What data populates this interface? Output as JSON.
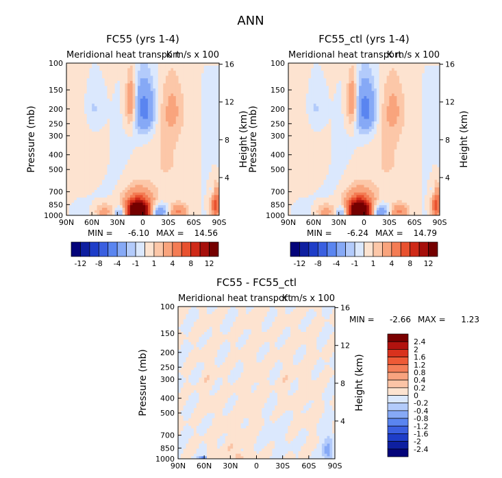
{
  "page_title": "ANN",
  "colors": {
    "land_bg": "#dfefff",
    "pos_light": "#fde3d0",
    "neg_light": "#cfe2ff"
  },
  "contour_scales": {
    "top_levels": [
      "-12",
      "-8",
      "-4",
      "-1",
      "1",
      "4",
      "8",
      "12"
    ],
    "top_colors": [
      "#04047a",
      "#0e1fa0",
      "#1e3dc8",
      "#3a5fe0",
      "#5a85f0",
      "#86a9f6",
      "#b3cbfb",
      "#dbe8fd",
      "#fde3d0",
      "#fcc7a8",
      "#f9a47d",
      "#f47c54",
      "#e8512f",
      "#cf2a18",
      "#a60f0b",
      "#740000"
    ],
    "diff_levels": [
      "2.4",
      "2",
      "1.6",
      "1.2",
      "0.8",
      "0.4",
      "0.2",
      "0",
      "-0.2",
      "-0.4",
      "-0.8",
      "-1.2",
      "-1.6",
      "-2",
      "-2.4"
    ],
    "diff_colors": [
      "#7a0000",
      "#b2130f",
      "#d9321d",
      "#ee5a36",
      "#f47e58",
      "#f8a37f",
      "#fbc4a6",
      "#fde3d0",
      "#dbe8fd",
      "#b3cbfb",
      "#86a9f6",
      "#5a85f0",
      "#3a5fe0",
      "#1e3dc8",
      "#0e1fa0",
      "#04047a"
    ]
  },
  "chart_data": [
    {
      "type": "heatmap",
      "title": "FC55 (yrs 1-4)",
      "subtitle_left": "Meridional heat transport",
      "subtitle_right": "K m/s x 100",
      "xlabel": "",
      "ylabel": "Pressure (mb)",
      "y2label": "Height (km)",
      "x_ticks": [
        "90N",
        "60N",
        "30N",
        "0",
        "30S",
        "60S",
        "90S"
      ],
      "y_ticks": [
        100,
        150,
        200,
        250,
        300,
        400,
        500,
        700,
        850,
        1000
      ],
      "y2_ticks": [
        16,
        12,
        8,
        4
      ],
      "y_scale": "log",
      "min_label": "MIN =",
      "min": "-6.10",
      "max_label": "MAX =",
      "max": "14.56",
      "blobs": [
        {
          "x": -5,
          "p": 950,
          "v": 13,
          "rx": 14,
          "rp": 130
        },
        {
          "x": -5,
          "p": 900,
          "v": 8,
          "rx": 18,
          "rp": 220
        },
        {
          "x": 16,
          "p": 950,
          "v": -6,
          "rx": 12,
          "rp": 120
        },
        {
          "x": 42,
          "p": 950,
          "v": 4,
          "rx": 10,
          "rp": 110
        },
        {
          "x": -25,
          "p": 960,
          "v": -5,
          "rx": 9,
          "rp": 100
        },
        {
          "x": -45,
          "p": 950,
          "v": 3,
          "rx": 12,
          "rp": 120
        },
        {
          "x": 2,
          "p": 200,
          "v": -5,
          "rx": 12,
          "rp": 80
        },
        {
          "x": -14,
          "p": 180,
          "v": 4,
          "rx": 6,
          "rp": 70
        },
        {
          "x": 35,
          "p": 200,
          "v": 2,
          "rx": 14,
          "rp": 100
        },
        {
          "x": -58,
          "p": 200,
          "v": -1.5,
          "rx": 10,
          "rp": 80
        },
        {
          "x": -66,
          "p": 400,
          "v": 1,
          "rx": 22,
          "rp": 300
        },
        {
          "x": 28,
          "p": 400,
          "v": 1,
          "rx": 16,
          "rp": 200
        },
        {
          "x": 86,
          "p": 850,
          "v": 7,
          "rx": 6,
          "rp": 200
        },
        {
          "x": 82,
          "p": 700,
          "v": -2,
          "rx": 3,
          "rp": 80
        }
      ]
    },
    {
      "type": "heatmap",
      "title": "FC55_ctl (yrs 1-4)",
      "subtitle_left": "Meridional heat transport",
      "subtitle_right": "K m/s x 100",
      "xlabel": "",
      "ylabel": "Pressure (mb)",
      "y2label": "Height (km)",
      "x_ticks": [
        "90N",
        "60N",
        "30N",
        "0",
        "30S",
        "60S",
        "90S"
      ],
      "y_ticks": [
        100,
        150,
        200,
        250,
        300,
        400,
        500,
        700,
        850,
        1000
      ],
      "y2_ticks": [
        16,
        12,
        8,
        4
      ],
      "y_scale": "log",
      "min_label": "MIN =",
      "min": "-6.24",
      "max_label": "MAX =",
      "max": "14.79",
      "blobs": [
        {
          "x": -5,
          "p": 950,
          "v": 13,
          "rx": 14,
          "rp": 130
        },
        {
          "x": -5,
          "p": 900,
          "v": 8,
          "rx": 18,
          "rp": 220
        },
        {
          "x": 16,
          "p": 950,
          "v": -6,
          "rx": 12,
          "rp": 120
        },
        {
          "x": 42,
          "p": 950,
          "v": 4,
          "rx": 10,
          "rp": 110
        },
        {
          "x": -25,
          "p": 960,
          "v": -5,
          "rx": 9,
          "rp": 100
        },
        {
          "x": -45,
          "p": 950,
          "v": 3,
          "rx": 12,
          "rp": 120
        },
        {
          "x": 2,
          "p": 200,
          "v": -5,
          "rx": 12,
          "rp": 80
        },
        {
          "x": -14,
          "p": 180,
          "v": 4,
          "rx": 6,
          "rp": 70
        },
        {
          "x": 35,
          "p": 200,
          "v": 2,
          "rx": 14,
          "rp": 100
        },
        {
          "x": -58,
          "p": 200,
          "v": -1.5,
          "rx": 10,
          "rp": 80
        },
        {
          "x": -66,
          "p": 400,
          "v": 1,
          "rx": 22,
          "rp": 300
        },
        {
          "x": 28,
          "p": 400,
          "v": 1,
          "rx": 16,
          "rp": 200
        },
        {
          "x": 86,
          "p": 850,
          "v": 7,
          "rx": 6,
          "rp": 200
        },
        {
          "x": 82,
          "p": 700,
          "v": -2,
          "rx": 3,
          "rp": 80
        }
      ]
    },
    {
      "type": "heatmap",
      "title": "FC55 - FC55_ctl",
      "subtitle_left": "Meridional heat transport",
      "subtitle_right": "K m/s x 100",
      "xlabel": "",
      "ylabel": "Pressure (mb)",
      "y2label": "Height (km)",
      "x_ticks": [
        "90N",
        "60N",
        "30N",
        "0",
        "30S",
        "60S",
        "90S"
      ],
      "y_ticks": [
        100,
        150,
        200,
        250,
        300,
        400,
        500,
        700,
        850,
        1000
      ],
      "y2_ticks": [
        16,
        12,
        8,
        4
      ],
      "y_scale": "log",
      "min_label": "MIN =",
      "min": "-2.66",
      "max_label": "MAX =",
      "max": "1.23",
      "blobs": [
        {
          "x": -55,
          "p": 300,
          "v": 0.1,
          "rx": 10,
          "rp": 200
        },
        {
          "x": -5,
          "p": 400,
          "v": 0.1,
          "rx": 15,
          "rp": 400
        },
        {
          "x": 35,
          "p": 300,
          "v": 0.1,
          "rx": 10,
          "rp": 200
        },
        {
          "x": 60,
          "p": 400,
          "v": 0.1,
          "rx": 10,
          "rp": 300
        },
        {
          "x": -30,
          "p": 800,
          "v": 0.1,
          "rx": 20,
          "rp": 300
        },
        {
          "x": 20,
          "p": 700,
          "v": -0.1,
          "rx": 15,
          "rp": 200
        },
        {
          "x": -20,
          "p": 980,
          "v": 0.4,
          "rx": 6,
          "rp": 60
        },
        {
          "x": -62,
          "p": 990,
          "v": -1.0,
          "rx": 4,
          "rp": 30
        },
        {
          "x": 82,
          "p": 900,
          "v": -0.5,
          "rx": 6,
          "rp": 250
        }
      ]
    }
  ]
}
